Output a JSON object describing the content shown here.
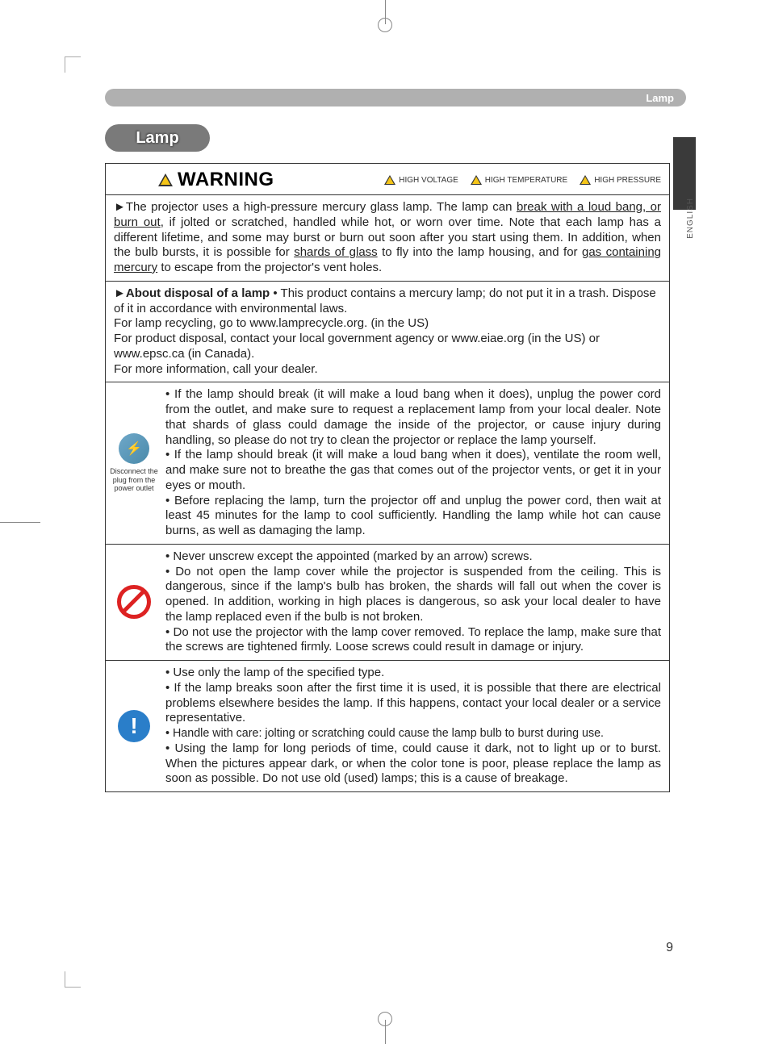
{
  "header": {
    "section": "Lamp"
  },
  "title": "Lamp",
  "lang": "ENGLISH",
  "page_number": "9",
  "warning_header": {
    "label": "WARNING",
    "hazards": [
      "HIGH VOLTAGE",
      "HIGH TEMPERATURE",
      "HIGH PRESSURE"
    ]
  },
  "row1": {
    "prefix": "►The projector uses a high-pressure mercury glass lamp. The lamp can ",
    "u1": "break with a loud bang, or burn out",
    "mid1": ", if jolted or scratched, handled while hot, or worn over time. Note that each lamp has a different lifetime, and some may burst or burn out soon after you start using them. In addition, when the bulb bursts, it is possible for ",
    "u2": "shards of glass",
    "mid2": " to fly into the lamp housing, and for ",
    "u3": "gas containing mercury",
    "suffix": " to escape from the projector's vent holes."
  },
  "row2": {
    "line1a": "►",
    "line1b": "About disposal of a lamp",
    "line1c": "  • This product contains a mercury lamp; do not put it in a trash. Dispose of it in accordance with environmental laws.",
    "line2": "For lamp recycling, go to www.lamprecycle.org. (in the US)",
    "line3": "For product disposal, contact your local government agency or www.eiae.org (in the US) or www.epsc.ca (in Canada).",
    "line4": "For more information, call your dealer."
  },
  "row3": {
    "icon_label": "Disconnect the plug from the power outlet",
    "b1": "• If the lamp should break (it will make a loud bang when it does), unplug the power cord from the outlet, and make sure to request a replacement lamp from your local dealer. Note that shards of glass could damage the inside of the projector, or cause injury during handling, so please do not try to clean the projector or replace the lamp yourself.",
    "b2": "• If the lamp should break (it will make a loud bang when it does), ventilate the room well, and make sure not to breathe the gas that comes out of the projector vents, or get it in your eyes or mouth.",
    "b3": "• Before replacing the lamp, turn the projector off and unplug the power cord, then wait at least 45 minutes for the lamp to cool sufficiently. Handling the lamp while hot can cause burns, as well as damaging the lamp."
  },
  "row4": {
    "b1": "• Never unscrew except the appointed (marked by an arrow) screws.",
    "b2": "• Do not open the lamp cover while the projector is suspended from the ceiling. This is dangerous, since if the lamp's bulb has broken, the shards will fall out when the cover is opened. In addition, working in high places is dangerous, so ask your local dealer to have the lamp replaced even if the bulb is not broken.",
    "b3": "• Do not use the projector with the lamp cover removed. To replace the lamp, make sure that the screws are tightened firmly. Loose screws could result in damage or injury."
  },
  "row5": {
    "b1": "• Use only the lamp of the specified type.",
    "b2": "• If the lamp breaks soon after the first time it is used, it is possible that there are electrical problems elsewhere besides the lamp. If this happens, contact your local dealer or a service representative.",
    "b3": "• Handle with care: jolting or scratching could cause the lamp bulb to burst during use.",
    "b4": "• Using the lamp for long periods of time, could cause it dark, not to light up or to burst. When the pictures appear dark, or when the color tone is poor, please replace the lamp as soon as possible. Do not use old (used) lamps; this is a cause of breakage."
  },
  "colors": {
    "header_bar": "#b0b0b0",
    "side_tab": "#3a3a3a",
    "pill": "#7a7a7a",
    "border": "#333333",
    "warning_tri": "#f5c518",
    "prohibit": "#dd2222",
    "info": "#2a7ec9",
    "plug": "#5a9abb"
  }
}
